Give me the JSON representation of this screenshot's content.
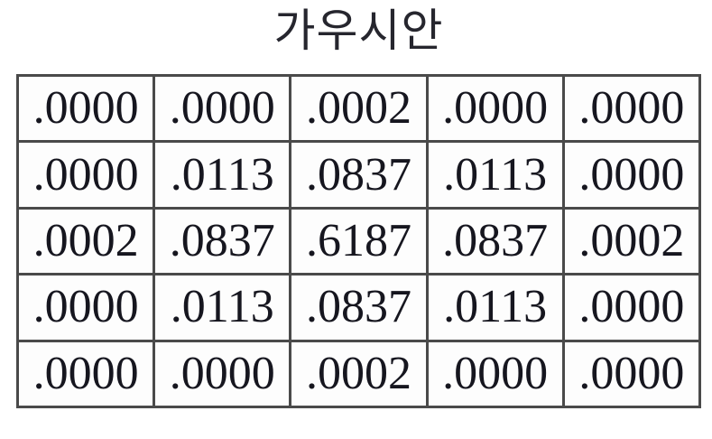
{
  "figure": {
    "title": "가우시안"
  },
  "chart_data": {
    "type": "table",
    "title": "가우시안",
    "rows": [
      [
        ".0000",
        ".0000",
        ".0002",
        ".0000",
        ".0000"
      ],
      [
        ".0000",
        ".0113",
        ".0837",
        ".0113",
        ".0000"
      ],
      [
        ".0002",
        ".0837",
        ".6187",
        ".0837",
        ".0002"
      ],
      [
        ".0000",
        ".0113",
        ".0837",
        ".0113",
        ".0000"
      ],
      [
        ".0000",
        ".0000",
        ".0002",
        ".0000",
        ".0000"
      ]
    ],
    "layout": {
      "grid": "5x5",
      "title_position": "top-center",
      "border_color": "#4a4a4a",
      "text_color": "#16161f",
      "background_color": "#ffffff"
    }
  }
}
